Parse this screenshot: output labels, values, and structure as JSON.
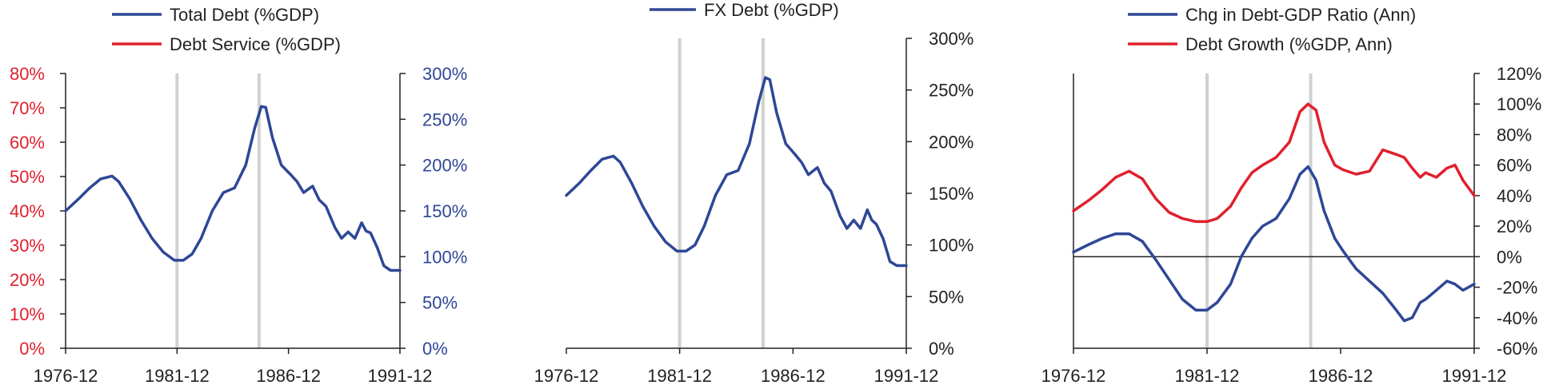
{
  "colors": {
    "blue": "#2e4796",
    "red": "#e0202e",
    "axis": "#222222",
    "marker": "#d0d0d0",
    "tick_text": "#222222"
  },
  "chart_data": [
    {
      "type": "line",
      "legend_placement": "top",
      "legend": [
        "Total Debt (%GDP)",
        "Debt Service (%GDP)"
      ],
      "x_ticks": [
        "1976-12",
        "1981-12",
        "1986-12",
        "1991-12"
      ],
      "x_range": [
        1976.92,
        1991.92
      ],
      "left_axis": {
        "ticks": [
          "0%",
          "10%",
          "20%",
          "30%",
          "40%",
          "50%",
          "60%",
          "70%",
          "80%"
        ],
        "ylim": [
          0,
          80
        ]
      },
      "right_axis": {
        "ticks": [
          "0%",
          "50%",
          "100%",
          "150%",
          "200%",
          "250%",
          "300%"
        ],
        "ylim": [
          0,
          300
        ]
      },
      "marker_lines": [
        1981.92,
        1985.6
      ],
      "series": [
        {
          "name": "Total Debt (%GDP)",
          "axis": "right",
          "x": [
            1976.92,
            1977.5,
            1978.0,
            1978.5,
            1979.0,
            1979.3,
            1979.8,
            1980.3,
            1980.8,
            1981.3,
            1981.8,
            1982.2,
            1982.6,
            1983.0,
            1983.5,
            1984.0,
            1984.5,
            1985.0,
            1985.4,
            1985.7,
            1985.9,
            1986.2,
            1986.6,
            1987.0,
            1987.3,
            1987.6,
            1988.0,
            1988.3,
            1988.6,
            1989.0,
            1989.3,
            1989.6,
            1989.9,
            1990.2,
            1990.4,
            1990.6,
            1990.9,
            1991.2,
            1991.5,
            1991.92
          ],
          "y": [
            150,
            163,
            175,
            185,
            188,
            182,
            163,
            140,
            120,
            105,
            96,
            96,
            103,
            120,
            150,
            170,
            175,
            200,
            240,
            264,
            263,
            230,
            200,
            190,
            182,
            170,
            177,
            162,
            155,
            132,
            120,
            127,
            120,
            137,
            128,
            126,
            110,
            90,
            85,
            85
          ]
        },
        {
          "name": "Debt Service (%GDP)",
          "axis": "left",
          "x": [],
          "y": []
        }
      ]
    },
    {
      "type": "line",
      "legend_placement": "top",
      "legend": [
        "FX Debt (%GDP)"
      ],
      "x_ticks": [
        "1976-12",
        "1981-12",
        "1986-12",
        "1991-12"
      ],
      "x_range": [
        1976.92,
        1991.92
      ],
      "right_axis": {
        "ticks": [
          "0%",
          "50%",
          "100%",
          "150%",
          "200%",
          "250%",
          "300%"
        ],
        "ylim": [
          0,
          300
        ]
      },
      "marker_lines": [
        1981.92,
        1985.6
      ],
      "series": [
        {
          "name": "FX Debt (%GDP)",
          "axis": "right",
          "x": [
            1976.92,
            1977.5,
            1978.0,
            1978.5,
            1979.0,
            1979.3,
            1979.8,
            1980.3,
            1980.8,
            1981.3,
            1981.8,
            1982.2,
            1982.6,
            1983.0,
            1983.5,
            1984.0,
            1984.5,
            1985.0,
            1985.4,
            1985.7,
            1985.9,
            1986.2,
            1986.6,
            1987.0,
            1987.3,
            1987.6,
            1988.0,
            1988.3,
            1988.6,
            1989.0,
            1989.3,
            1989.6,
            1989.9,
            1990.2,
            1990.4,
            1990.6,
            1990.9,
            1991.2,
            1991.5,
            1991.92
          ],
          "y": [
            148,
            160,
            172,
            183,
            186,
            180,
            160,
            137,
            118,
            103,
            94,
            94,
            100,
            118,
            148,
            168,
            172,
            198,
            238,
            262,
            260,
            228,
            198,
            188,
            180,
            168,
            175,
            160,
            152,
            128,
            116,
            124,
            116,
            134,
            124,
            120,
            106,
            84,
            80,
            80
          ]
        }
      ]
    },
    {
      "type": "line",
      "legend_placement": "top",
      "legend": [
        "Chg in Debt-GDP Ratio (Ann)",
        "Debt Growth (%GDP, Ann)"
      ],
      "x_ticks": [
        "1976-12",
        "1981-12",
        "1986-12",
        "1991-12"
      ],
      "x_range": [
        1976.92,
        1991.92
      ],
      "right_axis": {
        "ticks": [
          "-60%",
          "-40%",
          "-20%",
          "0%",
          "20%",
          "40%",
          "60%",
          "80%",
          "100%",
          "120%"
        ],
        "ylim": [
          -60,
          120
        ]
      },
      "marker_lines": [
        1981.92,
        1985.8
      ],
      "series": [
        {
          "name": "Chg in Debt-GDP Ratio (Ann)",
          "axis": "right",
          "x": [
            1976.92,
            1977.5,
            1978.0,
            1978.5,
            1979.0,
            1979.5,
            1980.0,
            1980.5,
            1981.0,
            1981.5,
            1981.92,
            1982.3,
            1982.8,
            1983.2,
            1983.6,
            1984.0,
            1984.5,
            1985.0,
            1985.4,
            1985.7,
            1986.0,
            1986.3,
            1986.7,
            1987.0,
            1987.5,
            1988.0,
            1988.5,
            1989.0,
            1989.3,
            1989.6,
            1989.9,
            1990.1,
            1990.5,
            1990.9,
            1991.2,
            1991.5,
            1991.92
          ],
          "y": [
            3,
            8,
            12,
            15,
            15,
            10,
            -2,
            -15,
            -28,
            -35,
            -35,
            -30,
            -18,
            0,
            12,
            20,
            25,
            38,
            54,
            59,
            50,
            30,
            12,
            4,
            -8,
            -16,
            -24,
            -35,
            -42,
            -40,
            -30,
            -28,
            -22,
            -16,
            -18,
            -22,
            -18
          ]
        },
        {
          "name": "Debt Growth (%GDP, Ann)",
          "axis": "right",
          "x": [
            1976.92,
            1977.5,
            1978.0,
            1978.5,
            1979.0,
            1979.5,
            1980.0,
            1980.5,
            1981.0,
            1981.5,
            1981.92,
            1982.3,
            1982.8,
            1983.2,
            1983.6,
            1984.0,
            1984.5,
            1985.0,
            1985.4,
            1985.7,
            1986.0,
            1986.3,
            1986.7,
            1987.0,
            1987.5,
            1988.0,
            1988.5,
            1989.0,
            1989.3,
            1989.6,
            1989.9,
            1990.1,
            1990.5,
            1990.9,
            1991.2,
            1991.5,
            1991.92
          ],
          "y": [
            30,
            37,
            44,
            52,
            56,
            51,
            38,
            29,
            25,
            23,
            23,
            25,
            33,
            45,
            55,
            60,
            65,
            75,
            95,
            100,
            96,
            75,
            60,
            57,
            54,
            56,
            70,
            67,
            65,
            58,
            52,
            55,
            52,
            58,
            60,
            50,
            40
          ]
        }
      ]
    }
  ]
}
